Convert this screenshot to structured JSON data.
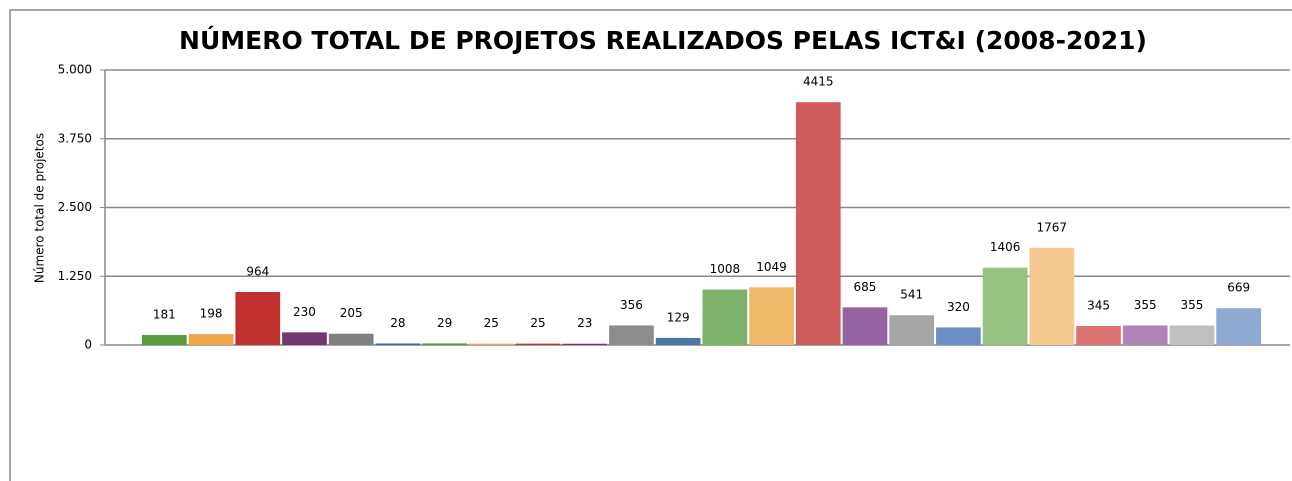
{
  "chart_data": {
    "type": "bar",
    "title": "NÚMERO TOTAL DE PROJETOS REALIZADOS PELAS ICT&I (2008-2021)",
    "y_label": "Número total de projetos",
    "categories": [
      null,
      null,
      null,
      null,
      null,
      null,
      null,
      null,
      null,
      null,
      null,
      null,
      null,
      null,
      null,
      null,
      null,
      null,
      null,
      null,
      null,
      null,
      null,
      null
    ],
    "values": [
      181,
      198,
      964,
      230,
      205,
      28,
      29,
      25,
      25,
      23,
      356,
      129,
      1008,
      1049,
      4415,
      685,
      541,
      320,
      1406,
      1767,
      345,
      355,
      355,
      669
    ],
    "colors": [
      "#5b9a3e",
      "#f0a54a",
      "#c0302f",
      "#71386f",
      "#808080",
      "#3f6aa6",
      "#5b9a3e",
      "#f0a54a",
      "#c0302f",
      "#71386f",
      "#8c8c8c",
      "#4f76a8",
      "#7db26a",
      "#f0b869",
      "#cd5b5b",
      "#9663a0",
      "#a6a6a6",
      "#6f8fc0",
      "#98c283",
      "#f3c98f",
      "#dc7373",
      "#ad86b7",
      "#bfbfbf",
      "#8eaad2"
    ],
    "ylim": [
      0,
      5000
    ],
    "yticks": [
      0,
      {
        "value": 1250,
        "label": "1.250"
      },
      {
        "value": 2500,
        "label": "2.500"
      },
      {
        "value": 3750,
        "label": "3.750"
      },
      {
        "value": 5000,
        "label": "5.000"
      }
    ],
    "grid": true
  }
}
